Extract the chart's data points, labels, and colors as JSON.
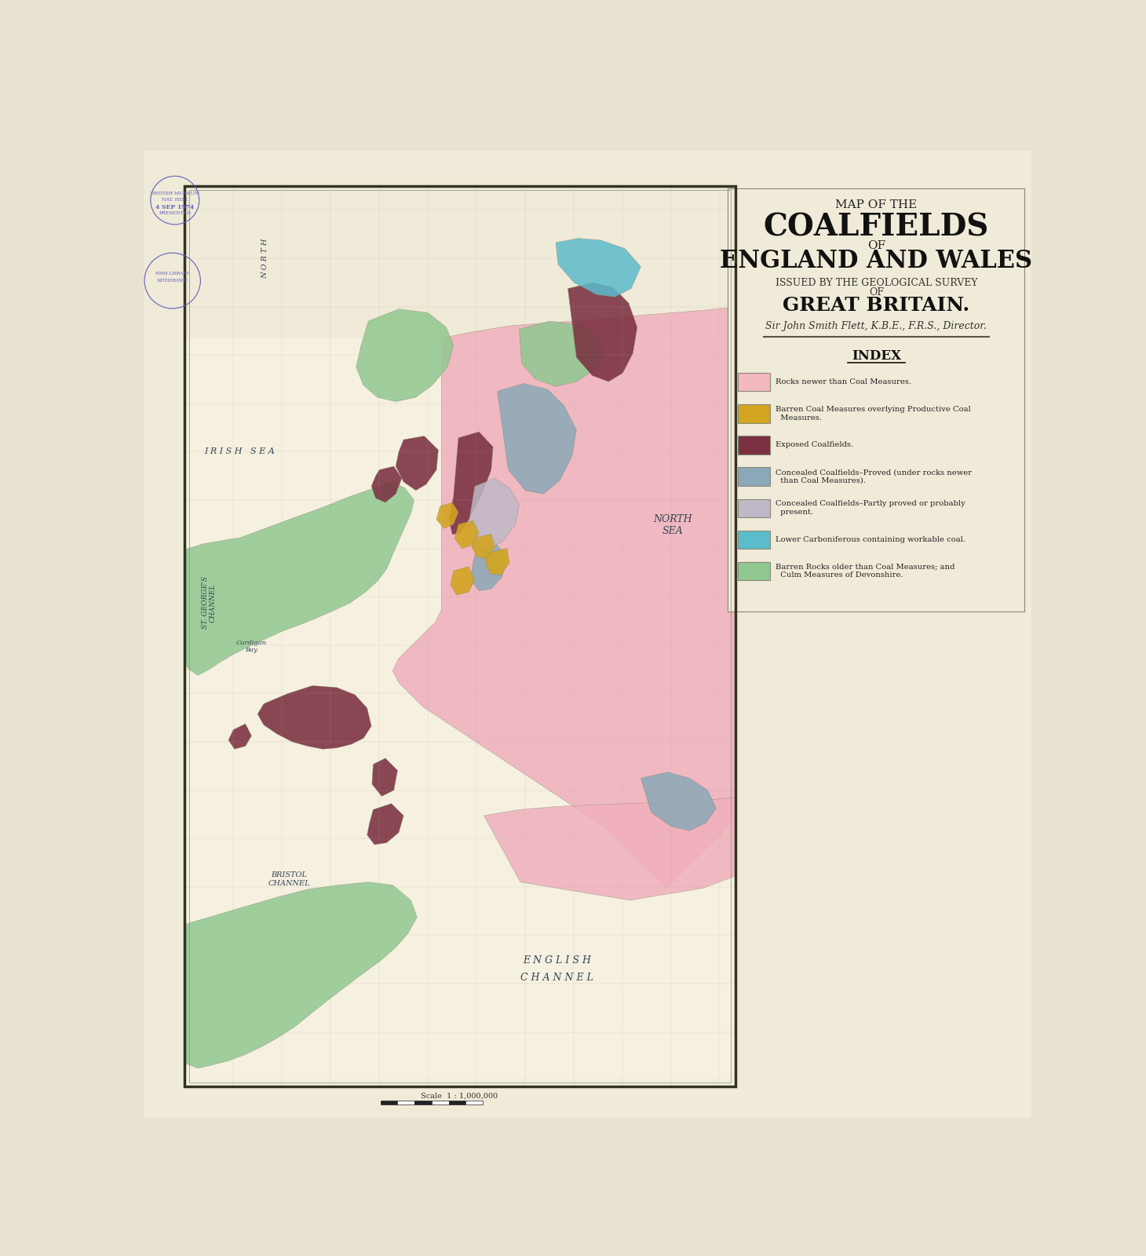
{
  "background_color": "#e8e2d0",
  "paper_color": "#f0ead8",
  "map_border_color": "#555544",
  "title_lines": [
    {
      "text": "MAP OF THE",
      "fontsize": 11,
      "style": "normal",
      "weight": "normal",
      "family": "serif"
    },
    {
      "text": "COALFIELDS",
      "fontsize": 28,
      "style": "normal",
      "weight": "bold",
      "family": "serif"
    },
    {
      "text": "OF",
      "fontsize": 11,
      "style": "normal",
      "weight": "normal",
      "family": "serif"
    },
    {
      "text": "ENGLAND AND WALES",
      "fontsize": 22,
      "style": "normal",
      "weight": "bold",
      "family": "serif"
    },
    {
      "text": "ISSUED BY THE GEOLOGICAL SURVEY",
      "fontsize": 9,
      "style": "normal",
      "weight": "normal",
      "family": "serif"
    },
    {
      "text": "OF",
      "fontsize": 9,
      "style": "normal",
      "weight": "normal",
      "family": "serif"
    },
    {
      "text": "GREAT BRITAIN.",
      "fontsize": 18,
      "style": "normal",
      "weight": "bold",
      "family": "serif"
    },
    {
      "text": "Sir John Smith Flett, K.B.E., F.R.S., Director.",
      "fontsize": 9,
      "style": "italic",
      "weight": "normal",
      "family": "serif"
    }
  ],
  "index_title": "INDEX",
  "legend_items": [
    {
      "color": "#f4b8c1",
      "label": "Rocks newer than Coal Measures."
    },
    {
      "color": "#d4a520",
      "label": "Barren Coal Measures overlying Productive Coal\n  Measures."
    },
    {
      "color": "#7a3040",
      "label": "Exposed Coalfields."
    },
    {
      "color": "#8aa8b8",
      "label": "Concealed Coalfields–Proved (under rocks newer\n  than Coal Measures)."
    },
    {
      "color": "#c0b8c8",
      "label": "Concealed Coalfields–Partly proved or probably\n  present."
    },
    {
      "color": "#5bbccc",
      "label": "Lower Carboniferous containing workable coal."
    },
    {
      "color": "#90c890",
      "label": "Barren Rocks older than Coal Measures; and\n  Culm Measures of Devonshire."
    }
  ],
  "map_colors": {
    "pink": "#f0b0bc",
    "dark_red": "#7a3040",
    "blue_grey": "#8aa8b8",
    "light_purple": "#c0b8c8",
    "teal": "#5bbccc",
    "green": "#90c890",
    "orange": "#d4a520"
  }
}
